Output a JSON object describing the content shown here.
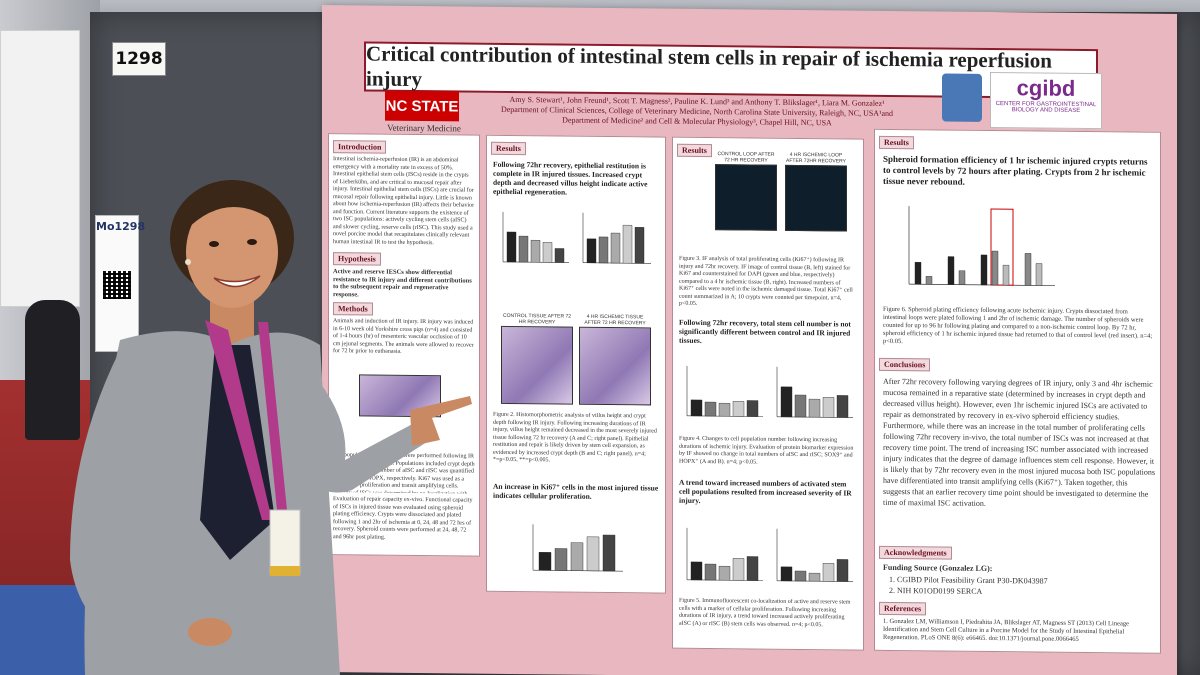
{
  "board_number": "1298",
  "flyer": {
    "code": "Mo1298"
  },
  "poster": {
    "title": "Critical contribution of intestinal stem cells in repair of ischemia reperfusion injury",
    "logo_nc_state": "NC STATE",
    "logo_nc_state_sub": "Veterinary Medicine",
    "authors": "Amy S. Stewart¹, John Freund¹, Scott T. Magness², Pauline K. Lund³ and Anthony T. Blikslager¹, Liara M. Gonzalez¹",
    "affiliation_1": "Department of Clinical Sciences, College of Veterinary Medicine, North Carolina State University, Raleigh, NC, USA¹and",
    "affiliation_2": "Department of Medicine² and Cell & Molecular Physiology³, Chapel Hill, NC, USA",
    "logo_cgibd": "cgibd",
    "logo_cgibd_sub": "CENTER FOR GASTROINTESTINAL BIOLOGY AND DISEASE",
    "sections": {
      "introduction": "Introduction",
      "introduction_text": "Intestinal ischemia-reperfusion (IR) is an abdominal emergency with a mortality rate in excess of 50%. Intestinal epithelial stem cells (ISCs) reside in the crypts of Lieberkühn, and are critical to mucosal repair after injury. Intestinal epithelial stem cells (ISCs) are crucial for mucosal repair following epithelial injury. Little is known about how ischemia-reperfusion (IR) affects their behavior and function. Current literature supports the existence of two ISC populations: actively cycling stem cells (aISC) and slower cycling, reserve cells (rISC). This study used a novel porcine model that recapitulates clinically relevant human intestinal IR to test the hypothesis.",
      "hypothesis": "Hypothesis",
      "hypothesis_text": "Active and reserve IESCs show differential resistance to IR injury and different contributions to the subsequent repair and regenerative response.",
      "methods": "Methods",
      "methods_text": "Animals and induction of IR injury. IR injury was induced in 6-10 week old Yorkshire cross pigs (n=4) and consisted of 1-4 hours (hr) of mesenteric vascular occlusion of 10 cm jejunal segments. The animals were allowed to recover for 72 hr prior to euthanasia.",
      "methods_text_2": "ISC populations. IF analyses were performed following IR and recovery time points. Populations included crypt depth and villus height, number of aISC and rISC was quantified by SOX9 and HOPX, respectively. Ki67 was used as a marker for proliferation and transit amplifying cells. Identity of ISCs was determined by co-localization with Ki67.",
      "methods_text_3": "Evaluation of repair capacity ex-vivo. Functional capacity of ISCs in injured tissue was evaluated using spheroid plating efficiency. Crypts were dissociated and plated following 1 and 2hr of ischemia at 0, 24, 48 and 72 hrs of recovery. Spheroid counts were performed at 24, 48, 72 and 96hr post plating.",
      "results": "Results",
      "results_1_heading": "Following 72hr recovery, epithelial restitution is complete in IR injured tissues. Increased crypt depth and decreased villus height indicate active epithelial regeneration.",
      "fig2_caption": "Figure 2. Histomorphometric analysis of villus height and crypt depth following IR injury. Following increasing durations of IR injury, villus height remained decreased in the most severely injured tissue following 72 hr recovery (A and C; right panel). Epithelial restitution and repair is likely driven by stem cell expansion, as evidenced by increased crypt depth (B and C; right panel). n=4; *=p<0.05, **=p<0.005.",
      "fig2_panel_c_left": "CONTROL TISSUE AFTER 72 HR RECOVERY",
      "fig2_panel_c_right": "4 HR ISCHEMIC TISSUE AFTER 72 HR RECOVERY",
      "results_2_heading": "An increase in Ki67⁺ cells in the most injured tissue indicates cellular proliferation.",
      "fig3_left": "CONTROL LOOP AFTER 72 HR RECOVERY",
      "fig3_right": "4 HR ISCHEMIC LOOP AFTER 72HR RECOVERY",
      "fig3_caption": "Figure 3. IF analysis of total proliferating cells (Ki67⁺) following IR injury and 72hr recovery. IF image of control tissue (B, left) stained for Ki67 and counterstained for DAPI (green and blue, respectively) compared to a 4 hr ischemic tissue (B, right). Increased numbers of Ki67⁺ cells were noted in the ischemic damaged tissue. Total Ki67⁺ cell count summarized in A; 10 crypts were counted per timepoint, n=4, p<0.05.",
      "results_3_heading": "Following 72hr recovery, total stem cell number is not significantly different between control and IR injured tissues.",
      "fig4_caption": "Figure 4. Changes to cell population number following increasing durations of ischemic injury. Evaluation of protein biomarker expression by IF showed no change in total numbers of aISC and rISC; SOX9⁺ and HOPX⁺ (A and B). n=4; p<0.05.",
      "results_4_heading": "A trend toward increased numbers of activated stem cell populations resulted from increased severity of IR injury.",
      "fig5_caption": "Figure 5. Immunofluorescent co-localization of active and reserve stem cells with a marker of cellular proliferation. Following increasing durations of IR injury, a trend toward increased actively proliferating aISC (A) or rISC (B) stem cells was observed. n=4; p<0.05.",
      "results_5_heading": "Spheroid formation efficiency of 1 hr ischemic injured crypts returns to control levels by 72 hours after plating. Crypts from 2 hr ischemic tissue never rebound.",
      "fig6_caption": "Figure 6. Spheroid plating efficiency following acute ischemic injury. Crypts dissociated from intestinal loops were plated following 1 and 2hr of ischemic damage. The number of spheroids were counted for up to 96 hr following plating and compared to a non-ischemic control loop. By 72 hr, spheroid efficiency of 1 hr ischemic injured tissue had returned to that of control level (red insert). n=4; p<0.05.",
      "conclusions": "Conclusions",
      "conclusions_text": "After 72hr recovery following varying degrees of IR injury, only 3 and 4hr ischemic mucosa remained in a reparative state (determined by increases in crypt depth and decreased villus height). However, even 1hr ischemic injured ISCs are activated to repair as demonstrated by recovery in ex-vivo spheroid efficiency studies. Furthermore, while there was an increase in the total number of proliferating cells following 72hr recovery in-vivo, the total number of ISCs was not increased at that recovery time point. The trend of increasing ISC number associated with increased injury indicates that the degree of damage influences stem cell response. However, it is likely that by 72hr recovery even in the most injured mucosa both ISC populations have differentiated into transit amplifying cells (Ki67⁺). Taken together, this suggests that an earlier recovery time point should be investigated to determine the time of maximal ISC activation.",
      "acknowledgments": "Acknowledgments",
      "funding_title": "Funding Source (Gonzalez LG):",
      "funding_1": "1. CGIBD Pilot Feasibility Grant P30-DK043987",
      "funding_2": "2. NIH K01OD0199 SERCA",
      "references": "References",
      "references_text": "1. Gonzalez LM, Williamson I, Piedrahita JA, Blikslager AT, Magness ST (2013) Cell Lineage Identification and Stem Cell Culture in a Porcine Model for the Study of Intestinal Epithelial Regeneration. PLoS ONE 8(6): e66465. doi:10.1371/journal.pone.0066465"
    }
  },
  "colors": {
    "poster_border": "#e8b7bf",
    "accent": "#6b1020",
    "nc_state_red": "#cc0000",
    "blazer": "#9da1a6",
    "lanyard": "#b23a8a"
  },
  "icons": [
    "unc-logo-icon",
    "qr-code-icon"
  ]
}
